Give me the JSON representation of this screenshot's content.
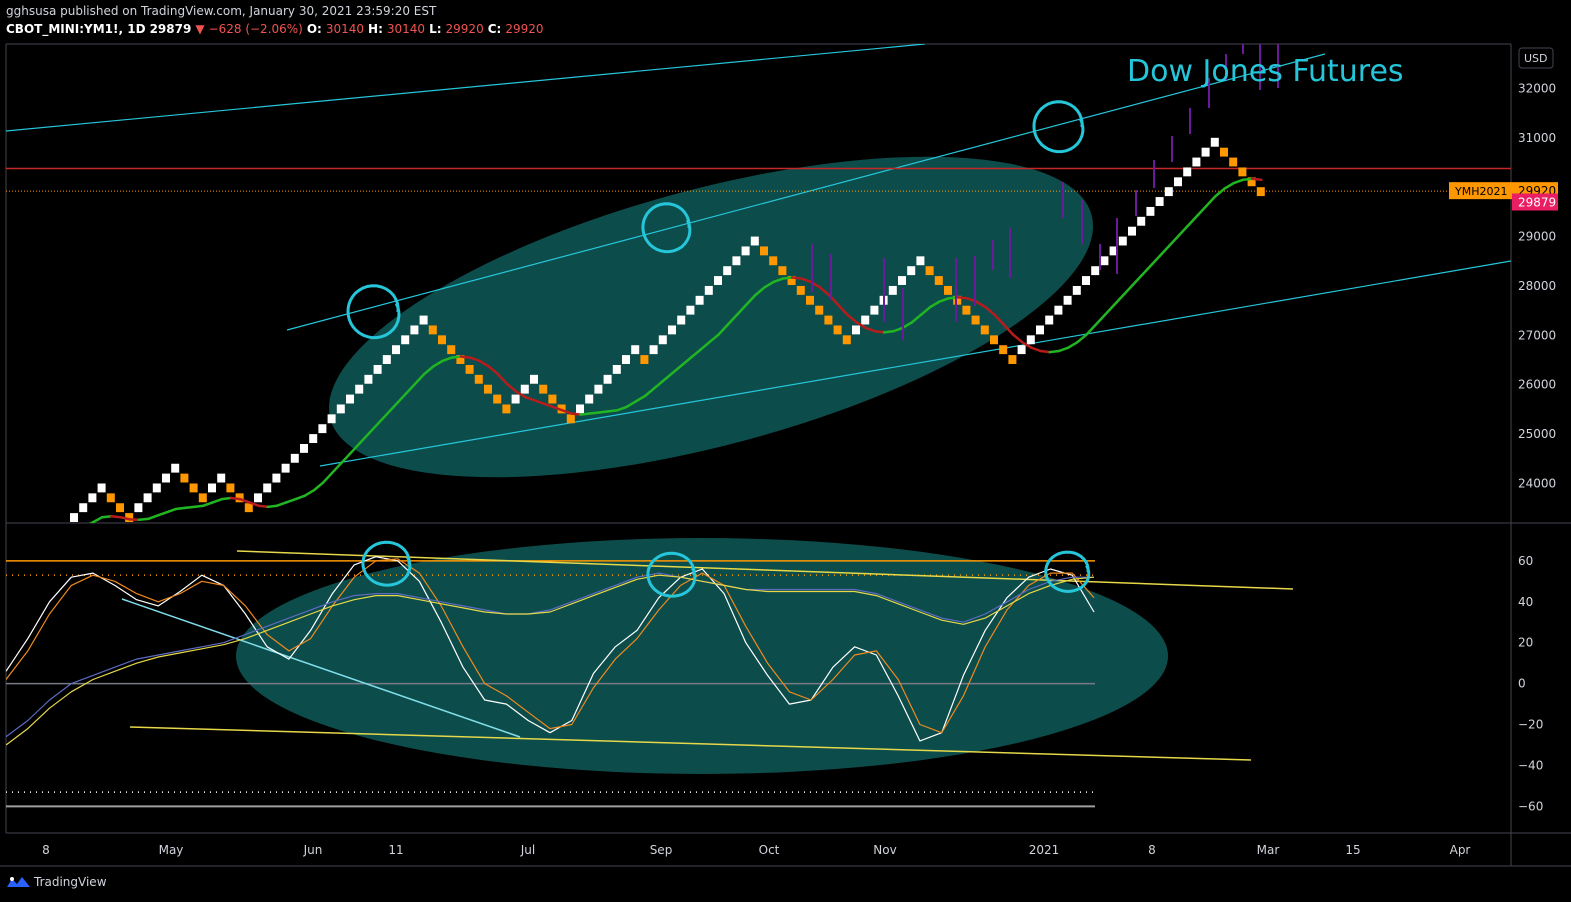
{
  "header": {
    "published_by": "gghsusa published on TradingView.com, January 30, 2021 23:59:20 EST",
    "symbol": "CBOT_MINI:YM1!, 1D",
    "last": "29879",
    "change": "−628 (−2.06%)",
    "open_label": "O:",
    "open": "30140",
    "high_label": "H:",
    "high": "30140",
    "low_label": "L:",
    "low": "29920",
    "close_label": "C:",
    "close": "29920"
  },
  "footer": {
    "brand": "TradingView"
  },
  "colors": {
    "up_brick": "#ffffff",
    "down_brick": "#ff9800",
    "ma_up": "#22b522",
    "ma_down": "#b71c1c",
    "channel": "#26c6da",
    "ellipse": "#0e5a58",
    "annotation": "#26c6da",
    "resistance": "#c62828",
    "last_price": "#ff9800",
    "price_tag": "#e91e63"
  },
  "chart_data": [
    {
      "type": "renko",
      "title": "Dow Jones Futures",
      "currency": "USD",
      "y_ticks": [
        24000,
        25000,
        26000,
        27000,
        28000,
        29000,
        30000,
        31000,
        32000
      ],
      "y_tick_labels": [
        "24000",
        "25000",
        "26000",
        "27000",
        "28000",
        "29000",
        "",
        "31000",
        "32000"
      ],
      "ylim": [
        23200,
        32900
      ],
      "x_tick_labels": [
        "8",
        "May",
        "Jun",
        "11",
        "Jul",
        "Sep",
        "Oct",
        "Nov",
        "2021",
        "8",
        "Mar",
        "15",
        "Apr"
      ],
      "brick_size": 200,
      "bricks": [
        {
          "d": "up",
          "lo": 23200
        },
        {
          "d": "up",
          "lo": 23400
        },
        {
          "d": "up",
          "lo": 23600
        },
        {
          "d": "up",
          "lo": 23800
        },
        {
          "d": "down",
          "lo": 23600
        },
        {
          "d": "down",
          "lo": 23400
        },
        {
          "d": "down",
          "lo": 23200
        },
        {
          "d": "up",
          "lo": 23400
        },
        {
          "d": "up",
          "lo": 23600
        },
        {
          "d": "up",
          "lo": 23800
        },
        {
          "d": "up",
          "lo": 24000
        },
        {
          "d": "up",
          "lo": 24200
        },
        {
          "d": "down",
          "lo": 24000
        },
        {
          "d": "down",
          "lo": 23800
        },
        {
          "d": "down",
          "lo": 23600
        },
        {
          "d": "up",
          "lo": 23800
        },
        {
          "d": "up",
          "lo": 24000
        },
        {
          "d": "down",
          "lo": 23800
        },
        {
          "d": "down",
          "lo": 23600
        },
        {
          "d": "down",
          "lo": 23400
        },
        {
          "d": "up",
          "lo": 23600
        },
        {
          "d": "up",
          "lo": 23800
        },
        {
          "d": "up",
          "lo": 24000
        },
        {
          "d": "up",
          "lo": 24200
        },
        {
          "d": "up",
          "lo": 24400
        },
        {
          "d": "up",
          "lo": 24600
        },
        {
          "d": "up",
          "lo": 24800
        },
        {
          "d": "up",
          "lo": 25000
        },
        {
          "d": "up",
          "lo": 25200
        },
        {
          "d": "up",
          "lo": 25400
        },
        {
          "d": "up",
          "lo": 25600
        },
        {
          "d": "up",
          "lo": 25800
        },
        {
          "d": "up",
          "lo": 26000
        },
        {
          "d": "up",
          "lo": 26200
        },
        {
          "d": "up",
          "lo": 26400
        },
        {
          "d": "up",
          "lo": 26600
        },
        {
          "d": "up",
          "lo": 26800
        },
        {
          "d": "up",
          "lo": 27000
        },
        {
          "d": "up",
          "lo": 27200
        },
        {
          "d": "down",
          "lo": 27000
        },
        {
          "d": "down",
          "lo": 26800
        },
        {
          "d": "down",
          "lo": 26600
        },
        {
          "d": "down",
          "lo": 26400
        },
        {
          "d": "down",
          "lo": 26200
        },
        {
          "d": "down",
          "lo": 26000
        },
        {
          "d": "down",
          "lo": 25800
        },
        {
          "d": "down",
          "lo": 25600
        },
        {
          "d": "down",
          "lo": 25400
        },
        {
          "d": "up",
          "lo": 25600
        },
        {
          "d": "up",
          "lo": 25800
        },
        {
          "d": "up",
          "lo": 26000
        },
        {
          "d": "down",
          "lo": 25800
        },
        {
          "d": "down",
          "lo": 25600
        },
        {
          "d": "down",
          "lo": 25400
        },
        {
          "d": "down",
          "lo": 25200
        },
        {
          "d": "up",
          "lo": 25400
        },
        {
          "d": "up",
          "lo": 25600
        },
        {
          "d": "up",
          "lo": 25800
        },
        {
          "d": "up",
          "lo": 26000
        },
        {
          "d": "up",
          "lo": 26200
        },
        {
          "d": "up",
          "lo": 26400
        },
        {
          "d": "up",
          "lo": 26600
        },
        {
          "d": "down",
          "lo": 26400
        },
        {
          "d": "up",
          "lo": 26600
        },
        {
          "d": "up",
          "lo": 26800
        },
        {
          "d": "up",
          "lo": 27000
        },
        {
          "d": "up",
          "lo": 27200
        },
        {
          "d": "up",
          "lo": 27400
        },
        {
          "d": "up",
          "lo": 27600
        },
        {
          "d": "up",
          "lo": 27800
        },
        {
          "d": "up",
          "lo": 28000
        },
        {
          "d": "up",
          "lo": 28200
        },
        {
          "d": "up",
          "lo": 28400
        },
        {
          "d": "up",
          "lo": 28600
        },
        {
          "d": "up",
          "lo": 28800
        },
        {
          "d": "down",
          "lo": 28600
        },
        {
          "d": "down",
          "lo": 28400
        },
        {
          "d": "down",
          "lo": 28200
        },
        {
          "d": "down",
          "lo": 28000
        },
        {
          "d": "down",
          "lo": 27800
        },
        {
          "d": "down",
          "lo": 27600
        },
        {
          "d": "down",
          "lo": 27400
        },
        {
          "d": "down",
          "lo": 27200
        },
        {
          "d": "down",
          "lo": 27000
        },
        {
          "d": "down",
          "lo": 26800
        },
        {
          "d": "up",
          "lo": 27000
        },
        {
          "d": "up",
          "lo": 27200
        },
        {
          "d": "up",
          "lo": 27400
        },
        {
          "d": "up",
          "lo": 27600
        },
        {
          "d": "up",
          "lo": 27800
        },
        {
          "d": "up",
          "lo": 28000
        },
        {
          "d": "up",
          "lo": 28200
        },
        {
          "d": "up",
          "lo": 28400
        },
        {
          "d": "down",
          "lo": 28200
        },
        {
          "d": "down",
          "lo": 28000
        },
        {
          "d": "down",
          "lo": 27800
        },
        {
          "d": "down",
          "lo": 27600
        },
        {
          "d": "down",
          "lo": 27400
        },
        {
          "d": "down",
          "lo": 27200
        },
        {
          "d": "down",
          "lo": 27000
        },
        {
          "d": "down",
          "lo": 26800
        },
        {
          "d": "down",
          "lo": 26600
        },
        {
          "d": "down",
          "lo": 26400
        },
        {
          "d": "up",
          "lo": 26600
        },
        {
          "d": "up",
          "lo": 26800
        },
        {
          "d": "up",
          "lo": 27000
        },
        {
          "d": "up",
          "lo": 27200
        },
        {
          "d": "up",
          "lo": 27400
        },
        {
          "d": "up",
          "lo": 27600
        },
        {
          "d": "up",
          "lo": 27800
        },
        {
          "d": "up",
          "lo": 28000
        },
        {
          "d": "up",
          "lo": 28200
        },
        {
          "d": "up",
          "lo": 28400
        },
        {
          "d": "up",
          "lo": 28600
        },
        {
          "d": "up",
          "lo": 28800
        },
        {
          "d": "up",
          "lo": 29000
        },
        {
          "d": "up",
          "lo": 29200
        },
        {
          "d": "up",
          "lo": 29400
        },
        {
          "d": "up",
          "lo": 29600
        },
        {
          "d": "up",
          "lo": 29800
        },
        {
          "d": "up",
          "lo": 30000
        },
        {
          "d": "up",
          "lo": 30200
        },
        {
          "d": "up",
          "lo": 30400
        },
        {
          "d": "up",
          "lo": 30600
        },
        {
          "d": "up",
          "lo": 30800
        },
        {
          "d": "down",
          "lo": 30600
        },
        {
          "d": "down",
          "lo": 30400
        },
        {
          "d": "down",
          "lo": 30200
        },
        {
          "d": "down",
          "lo": 30000
        },
        {
          "d": "down",
          "lo": 29800
        }
      ],
      "resistance_level": 30380,
      "last_price": 29920,
      "last_symbol": "YMH2021",
      "last_price_label": "29920",
      "price_tag_label": "29879",
      "price_tag_value": 29690
    },
    {
      "type": "line",
      "title": "",
      "y_ticks": [
        60,
        40,
        20,
        0,
        -20,
        -40,
        -60
      ],
      "y_tick_labels": [
        "60",
        "40",
        "20",
        "0",
        "−20",
        "−40",
        "−60"
      ],
      "ylim": [
        -73,
        78
      ],
      "levels": {
        "upper_band": 53,
        "lower_band": -53,
        "upper_line": 60,
        "zero": 0,
        "lower_line": -60
      },
      "series": [
        {
          "name": "",
          "color": "#ffffff",
          "values": [
            6,
            22,
            40,
            52,
            54,
            48,
            41,
            38,
            45,
            53,
            48,
            34,
            18,
            12,
            26,
            44,
            58,
            62,
            60,
            50,
            30,
            8,
            -8,
            -10,
            -18,
            -24,
            -18,
            5,
            18,
            26,
            42,
            52,
            56,
            44,
            20,
            4,
            -10,
            -8,
            8,
            18,
            14,
            -6,
            -28,
            -24,
            4,
            26,
            42,
            52,
            56,
            53,
            35
          ]
        },
        {
          "name": "",
          "color": "#ef8a1e",
          "values": [
            2,
            16,
            34,
            48,
            53,
            50,
            44,
            40,
            44,
            50,
            48,
            38,
            24,
            16,
            22,
            38,
            52,
            60,
            61,
            54,
            38,
            18,
            0,
            -6,
            -14,
            -22,
            -20,
            -2,
            12,
            22,
            36,
            48,
            54,
            48,
            28,
            10,
            -4,
            -8,
            2,
            14,
            16,
            2,
            -20,
            -24,
            -6,
            18,
            36,
            48,
            54,
            54,
            42
          ]
        },
        {
          "name": "",
          "color": "#5c6bc0",
          "values": [
            -26,
            -18,
            -8,
            0,
            4,
            8,
            12,
            14,
            16,
            18,
            20,
            24,
            28,
            32,
            36,
            40,
            43,
            44,
            44,
            42,
            40,
            38,
            36,
            34,
            34,
            36,
            40,
            44,
            48,
            52,
            54,
            52,
            50,
            48,
            46,
            46,
            46,
            46,
            46,
            46,
            44,
            40,
            36,
            32,
            30,
            34,
            40,
            46,
            50,
            52,
            52
          ]
        },
        {
          "name": "",
          "color": "#e6d84a",
          "values": [
            -30,
            -22,
            -12,
            -4,
            2,
            6,
            10,
            13,
            15,
            17,
            19,
            22,
            26,
            30,
            34,
            38,
            41,
            43,
            43,
            41,
            39,
            37,
            35,
            34,
            34,
            35,
            39,
            43,
            47,
            51,
            53,
            52,
            50,
            48,
            46,
            45,
            45,
            45,
            45,
            45,
            43,
            39,
            35,
            31,
            29,
            32,
            38,
            44,
            48,
            51,
            52
          ]
        }
      ]
    }
  ]
}
